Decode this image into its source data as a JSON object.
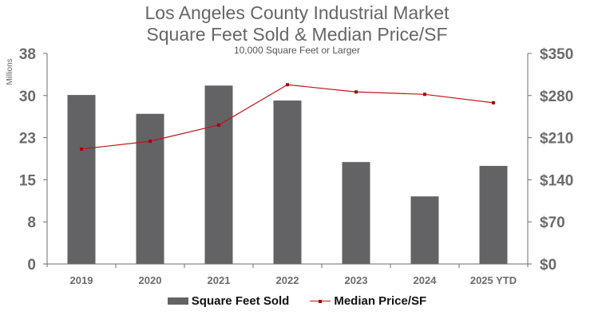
{
  "chart_data": {
    "type": "bar",
    "title": "Los Angeles County Industrial Market",
    "subtitle_line2": "Square Feet Sold & Median Price/SF",
    "subtitle": "10,000 Square Feet or Larger",
    "categories": [
      "2019",
      "2020",
      "2021",
      "2022",
      "2023",
      "2024",
      "2025 YTD"
    ],
    "series": [
      {
        "name": "Square Feet Sold",
        "type": "bar",
        "axis": "left",
        "color": "#636366",
        "values": [
          30.5,
          27.1,
          32.2,
          29.5,
          18.4,
          12.2,
          17.7
        ]
      },
      {
        "name": "Median Price/SF",
        "type": "line",
        "axis": "right",
        "color": "#c0141b",
        "marker_color": "#a5000b",
        "values": [
          191,
          204,
          231,
          298,
          286,
          282,
          268
        ]
      }
    ],
    "y_left": {
      "label": "Millions",
      "ylim": [
        0,
        38
      ],
      "ticks": [
        0,
        7.6,
        15.2,
        22.8,
        30.4,
        38
      ],
      "tick_labels": [
        "0",
        "8",
        "15",
        "23",
        "30",
        "38"
      ]
    },
    "y_right": {
      "label": "",
      "ylim": [
        0,
        350
      ],
      "ticks": [
        0,
        70,
        140,
        210,
        280,
        350
      ],
      "tick_labels": [
        "$0",
        "$70",
        "$140",
        "$210",
        "$280",
        "$350"
      ]
    },
    "xlabel": "",
    "grid": false,
    "legend": {
      "position": "bottom",
      "entries": [
        "Square Feet Sold",
        "Median Price/SF"
      ]
    }
  }
}
